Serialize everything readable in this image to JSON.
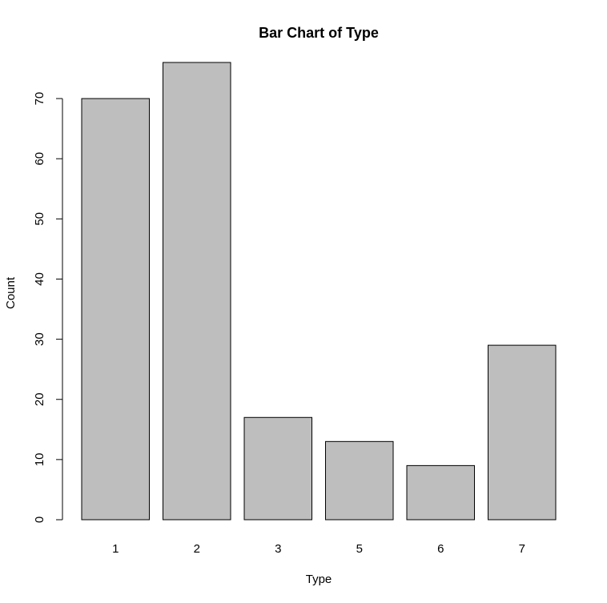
{
  "chart_data": {
    "type": "bar",
    "title": "Bar Chart of Type",
    "xlabel": "Type",
    "ylabel": "Count",
    "categories": [
      "1",
      "2",
      "3",
      "5",
      "6",
      "7"
    ],
    "values": [
      70,
      76,
      17,
      13,
      9,
      29
    ],
    "ylim": [
      0,
      76
    ],
    "yticks": [
      0,
      10,
      20,
      30,
      40,
      50,
      60,
      70
    ],
    "ytick_labels": [
      "0",
      "10",
      "20",
      "30",
      "40",
      "50",
      "60",
      "70"
    ],
    "bar_color": "#bebebe",
    "bar_border_color": "#000000",
    "grid": false,
    "legend": "none"
  }
}
